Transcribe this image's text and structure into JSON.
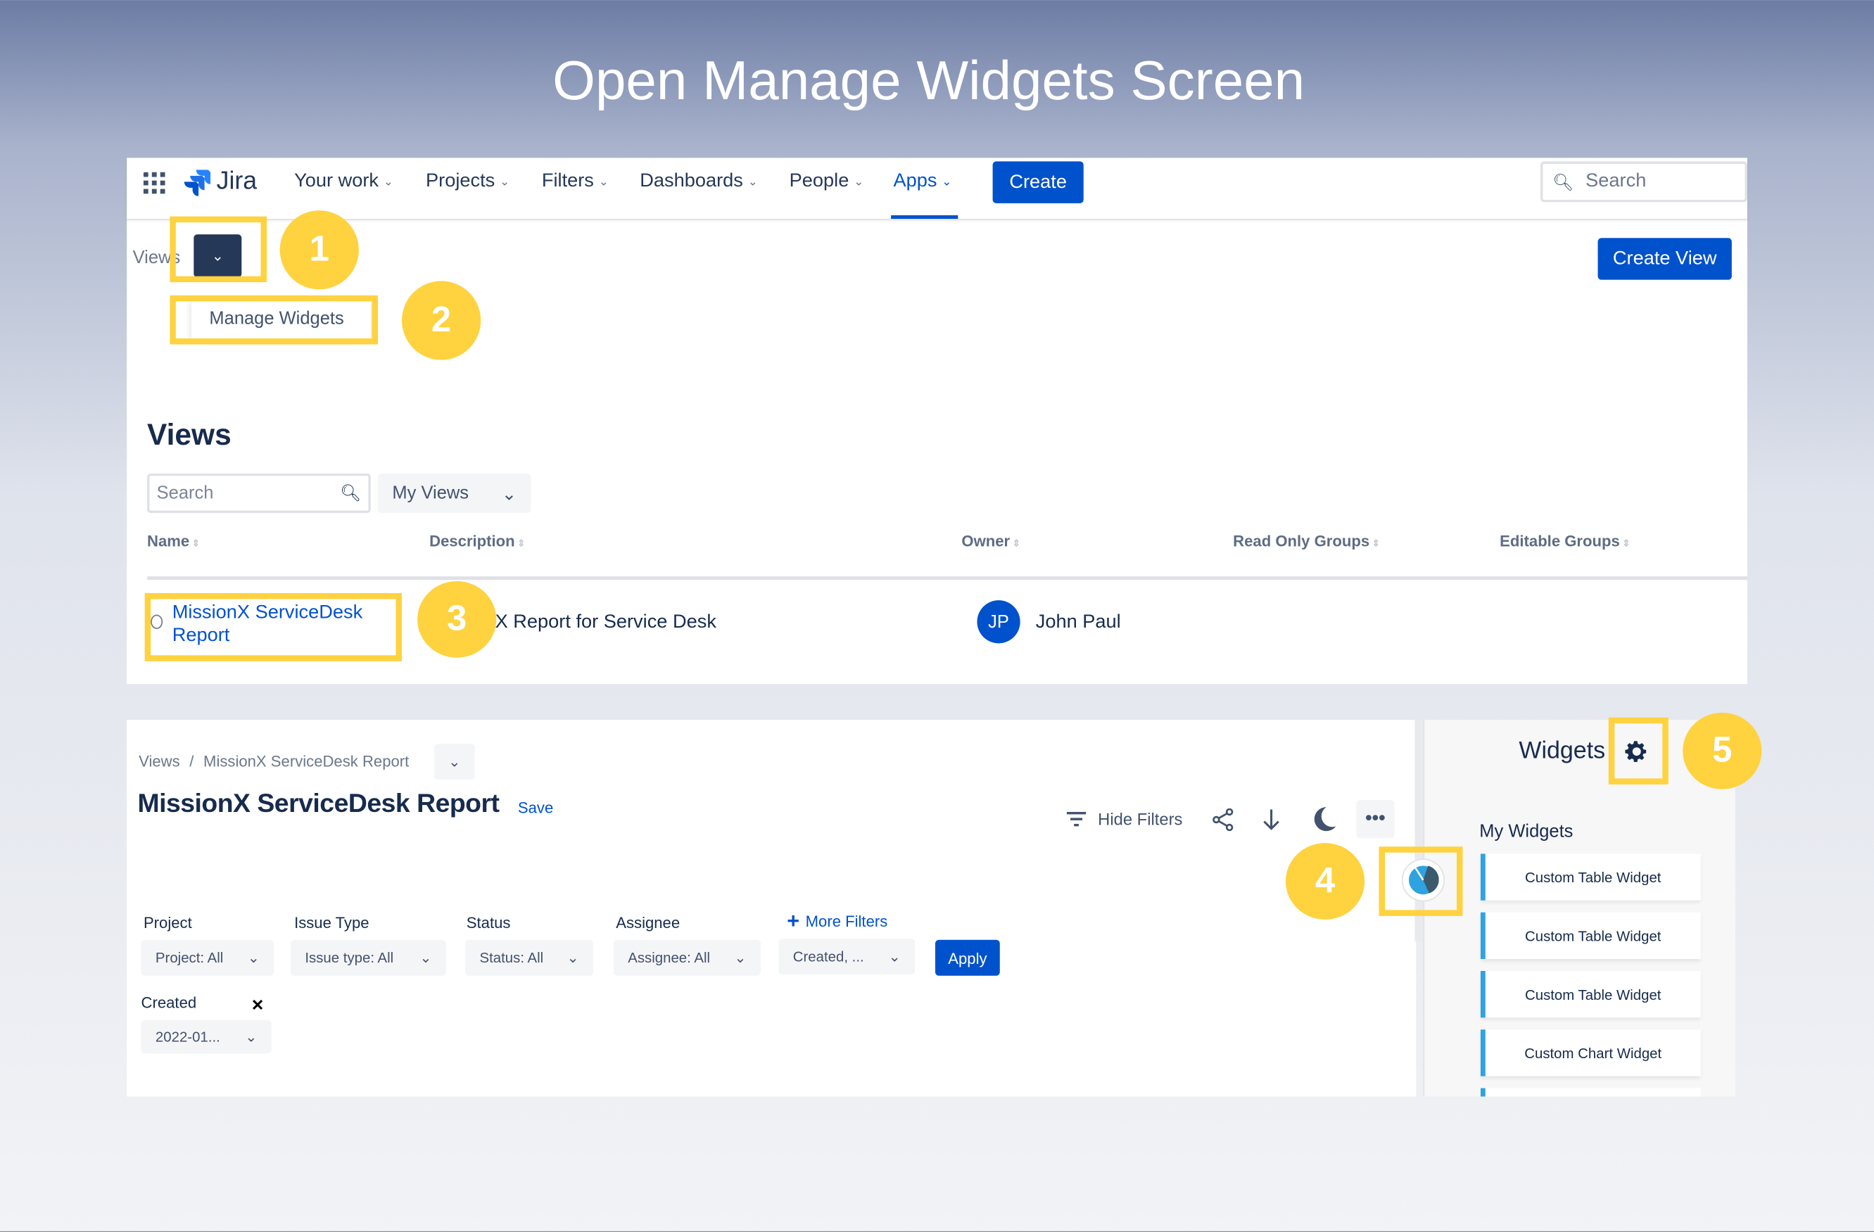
{
  "title": "Open Manage Widgets Screen",
  "nav": {
    "logo": "Jira",
    "items": [
      "Your work",
      "Projects",
      "Filters",
      "Dashboards",
      "People",
      "Apps"
    ],
    "active": "Apps",
    "create": "Create",
    "search_placeholder": "Search"
  },
  "views_bar": {
    "label": "Views",
    "create_view": "Create View",
    "menu_item": "Manage Widgets"
  },
  "views_page": {
    "heading": "Views",
    "search_placeholder": "Search",
    "filter": "My Views",
    "columns": [
      "Name",
      "Description",
      "Owner",
      "Read Only Groups",
      "Editable Groups"
    ],
    "rows": [
      {
        "name": "MissionX ServiceDesk Report",
        "description": "X Report for Service Desk",
        "owner_initials": "JP",
        "owner": "John Paul"
      }
    ]
  },
  "report": {
    "breadcrumb": [
      "Views",
      "/",
      "MissionX ServiceDesk Report"
    ],
    "title": "MissionX ServiceDesk Report",
    "save": "Save",
    "hide_filters": "Hide Filters",
    "filters": [
      {
        "label": "Project",
        "value": "Project: All"
      },
      {
        "label": "Issue Type",
        "value": "Issue type: All"
      },
      {
        "label": "Status",
        "value": "Status: All"
      },
      {
        "label": "Assignee",
        "value": "Assignee: All"
      }
    ],
    "more_filters": "More Filters",
    "created_dropdown": "Created, ...",
    "apply": "Apply",
    "created_label": "Created",
    "created_value": "2022-01...",
    "remove": "✕"
  },
  "widgets": {
    "title": "Widgets",
    "section": "My Widgets",
    "items": [
      "Custom Table Widget",
      "Custom Table Widget",
      "Custom Table Widget",
      "Custom Chart Widget"
    ]
  },
  "steps": [
    "1",
    "2",
    "3",
    "4",
    "5"
  ],
  "colors": {
    "accent": "#0052cc",
    "highlight": "#ffd23f",
    "widget_border": "#2ea3e0"
  }
}
